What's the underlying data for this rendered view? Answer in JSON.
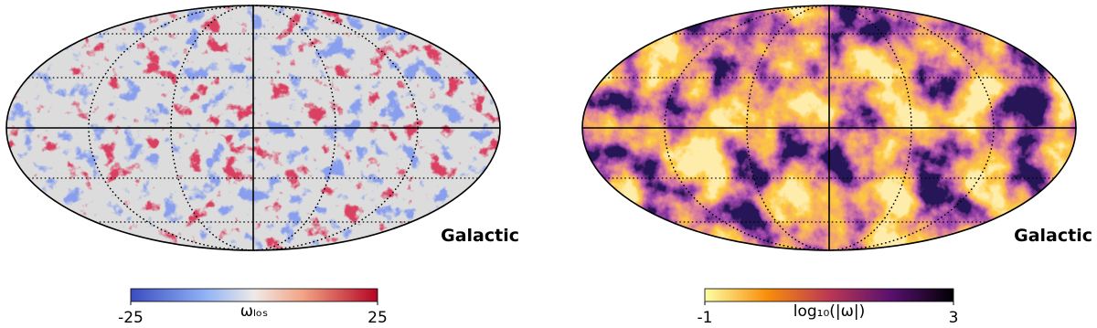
{
  "panels": [
    {
      "frame_label": "Galactic",
      "colorbar": {
        "label": "ωₗₒₛ",
        "lim": [
          -25,
          25
        ],
        "ticks": [
          -25,
          25
        ]
      }
    },
    {
      "frame_label": "Galactic",
      "colorbar": {
        "label": "log₁₀(|ω|)",
        "lim": [
          -1,
          3
        ],
        "ticks": [
          -1,
          3
        ]
      }
    }
  ]
}
